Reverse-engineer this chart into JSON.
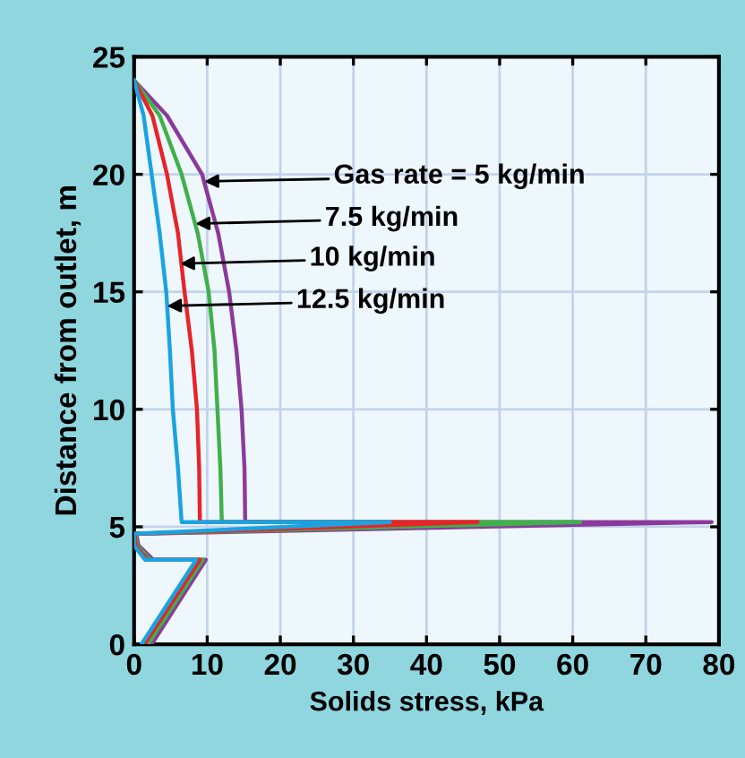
{
  "chart_data": {
    "type": "line",
    "xlabel": "Solids stress, kPa",
    "ylabel": "Distance from outlet, m",
    "xlim": [
      0,
      80
    ],
    "ylim": [
      0,
      25
    ],
    "xticks": [
      0,
      10,
      20,
      30,
      40,
      50,
      60,
      70,
      80
    ],
    "yticks": [
      0,
      5,
      10,
      15,
      20,
      25
    ],
    "grid": true,
    "marker": "none",
    "line_style": "solid",
    "series": [
      {
        "color": "#8b3a9b",
        "x": [
          0,
          4.5,
          9.3,
          11.5,
          13,
          14,
          14.7,
          15.1,
          15.2,
          79,
          0.3,
          0.6,
          2.6,
          9.8,
          2.4
        ],
        "values": [
          24,
          22.5,
          20,
          17.5,
          15,
          12.5,
          10,
          7.5,
          5.2,
          5.2,
          4.7,
          4.2,
          3.6,
          3.6,
          0
        ]
      },
      {
        "color": "#3fb04a",
        "x": [
          0,
          3.5,
          6.5,
          8.7,
          10.2,
          11,
          11.4,
          11.8,
          12,
          61,
          0.2,
          0.4,
          2.2,
          9.4,
          1.9
        ],
        "values": [
          24,
          22.5,
          20,
          17.5,
          15,
          12.5,
          10,
          7.5,
          5.2,
          5.2,
          4.7,
          4.2,
          3.6,
          3.6,
          0
        ]
      },
      {
        "color": "#e8232a",
        "x": [
          0,
          2.5,
          4.5,
          6,
          6.9,
          7.9,
          8.6,
          8.9,
          9,
          47,
          0.1,
          0.2,
          1.8,
          9,
          1.4
        ],
        "values": [
          24,
          22.5,
          20,
          17.5,
          15,
          12.5,
          10,
          7.5,
          5.2,
          5.2,
          4.7,
          4.2,
          3.6,
          3.6,
          0
        ]
      },
      {
        "color": "#1aa3e0",
        "x": [
          0,
          1.3,
          2.4,
          3.5,
          4.4,
          4.9,
          5.3,
          6,
          6.5,
          35,
          0,
          0,
          1.5,
          8.5,
          1
        ],
        "values": [
          24,
          22.5,
          20,
          17.5,
          15,
          12.5,
          10,
          7.5,
          5.2,
          5.2,
          4.7,
          4.2,
          3.6,
          3.6,
          0
        ]
      }
    ],
    "annotations": [
      {
        "text": "Gas rate = 5 kg/min",
        "x": 9.6,
        "y": 19.7
      },
      {
        "text": "7.5 kg/min",
        "x": 8.4,
        "y": 17.9
      },
      {
        "text": "10 kg/min",
        "x": 6.3,
        "y": 16.2
      },
      {
        "text": "12.5 kg/min",
        "x": 4.5,
        "y": 14.4
      }
    ]
  }
}
